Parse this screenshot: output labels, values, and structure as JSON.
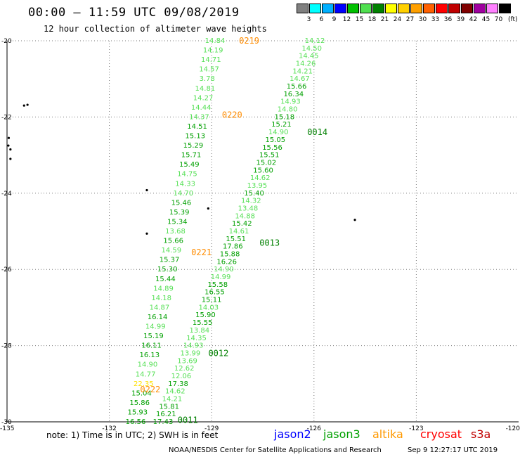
{
  "header": {
    "title": "00:00 — 11:59 UTC 09/08/2019",
    "subtitle": "12 hour collection of altimeter wave heights"
  },
  "legend": {
    "unit": "(ft)",
    "labels": [
      "3",
      "6",
      "9",
      "12",
      "15",
      "18",
      "21",
      "24",
      "27",
      "30",
      "33",
      "36",
      "39",
      "42",
      "45",
      "70"
    ],
    "colors": [
      "#808080",
      "#00ffff",
      "#00b0ff",
      "#0000ff",
      "#00c000",
      "#50e050",
      "#008000",
      "#ffff00",
      "#ffd000",
      "#ffa000",
      "#ff6000",
      "#ff0000",
      "#c00000",
      "#800000",
      "#a000a0",
      "#ff80ff",
      "#000000"
    ]
  },
  "axes": {
    "lat_labels": [
      "-20",
      "-22",
      "-24",
      "-26",
      "-28",
      "-30"
    ],
    "lon_labels": [
      "-135",
      "-132",
      "-129",
      "-126",
      "-123",
      "-120"
    ]
  },
  "colors": {
    "bright": "#57e057",
    "dark": "#00a000",
    "orange": "#ff8c00",
    "yellow": "#ffe000"
  },
  "tracks": [
    {
      "id": "A",
      "x1": 306,
      "y1": 58,
      "x2": 193,
      "y2": 600,
      "values": [
        "14.84",
        "14.19",
        "14.71",
        "14.57",
        "3.78",
        "14.81",
        "14.27",
        "14.44",
        "14.37",
        "14.51",
        "15.13",
        "15.29",
        "15.71",
        "15.49",
        "14.75",
        "14.33",
        "14.70",
        "15.46",
        "15.39",
        "15.34",
        "13.68",
        "15.66",
        "14.59",
        "15.37",
        "15.30",
        "15.44",
        "14.89",
        "14.18",
        "14.87",
        "16.14",
        "14.99",
        "15.19",
        "16.11",
        "16.13",
        "14.90",
        "14.77",
        "22.35",
        "15.04",
        "15.86",
        "15.93",
        "16.56"
      ],
      "tones": [
        "b",
        "b",
        "b",
        "b",
        "b",
        "b",
        "b",
        "b",
        "b",
        "d",
        "d",
        "d",
        "d",
        "d",
        "b",
        "b",
        "b",
        "d",
        "d",
        "d",
        "b",
        "d",
        "b",
        "d",
        "d",
        "d",
        "b",
        "b",
        "b",
        "d",
        "b",
        "d",
        "d",
        "d",
        "b",
        "b",
        "y",
        "d",
        "d",
        "d",
        "d"
      ]
    },
    {
      "id": "B",
      "x1": 448,
      "y1": 58,
      "x2": 232,
      "y2": 600,
      "values": [
        "14.12",
        "14.50",
        "14.45",
        "14.26",
        "14.21",
        "14.67",
        "15.66",
        "16.34",
        "14.93",
        "14.80",
        "15.18",
        "15.21",
        "14.90",
        "15.05",
        "15.56",
        "15.51",
        "15.02",
        "15.60",
        "14.62",
        "13.95",
        "15.40",
        "14.32",
        "13.48",
        "14.88",
        "15.42",
        "14.61",
        "15.51",
        "17.86",
        "15.88",
        "16.26",
        "14.90",
        "14.99",
        "15.58",
        "16.55",
        "15.11",
        "14.03",
        "15.90",
        "15.55",
        "13.84",
        "14.35",
        "14.93",
        "13.99",
        "13.69",
        "12.62",
        "12.06",
        "17.38",
        "14.62",
        "14.21",
        "15.81",
        "16.21",
        "17.43"
      ],
      "tones": [
        "b",
        "b",
        "b",
        "b",
        "b",
        "b",
        "d",
        "d",
        "b",
        "b",
        "d",
        "d",
        "b",
        "d",
        "d",
        "d",
        "d",
        "d",
        "b",
        "b",
        "d",
        "b",
        "b",
        "b",
        "d",
        "b",
        "d",
        "d",
        "d",
        "d",
        "b",
        "b",
        "d",
        "d",
        "d",
        "b",
        "d",
        "d",
        "b",
        "b",
        "b",
        "b",
        "b",
        "b",
        "b",
        "d",
        "b",
        "b",
        "d",
        "d",
        "d"
      ]
    }
  ],
  "orbit_labels": [
    {
      "text": "0219",
      "color": "orange",
      "lat": -20.0,
      "lon": -127.9
    },
    {
      "text": "0220",
      "color": "orange",
      "lat": -21.95,
      "lon": -128.4
    },
    {
      "text": "0014",
      "color": "darkgreen",
      "lat": -22.4,
      "lon": -125.9
    },
    {
      "text": "0013",
      "color": "darkgreen",
      "lat": -25.3,
      "lon": -127.3
    },
    {
      "text": "0221",
      "color": "orange",
      "lat": -25.55,
      "lon": -129.3
    },
    {
      "text": "0012",
      "color": "darkgreen",
      "lat": -28.2,
      "lon": -128.8
    },
    {
      "text": "0222",
      "color": "orange",
      "lat": -29.15,
      "lon": -130.8
    },
    {
      "text": "0011",
      "color": "darkgreen",
      "lat": -29.95,
      "lon": -129.7
    }
  ],
  "islands": [
    {
      "lat": -21.7,
      "lon": -134.5
    },
    {
      "lat": -21.68,
      "lon": -134.4
    },
    {
      "lat": -22.55,
      "lon": -134.95
    },
    {
      "lat": -22.75,
      "lon": -134.96
    },
    {
      "lat": -22.85,
      "lon": -134.9
    },
    {
      "lat": -23.1,
      "lon": -134.9
    },
    {
      "lat": -23.92,
      "lon": -130.9
    },
    {
      "lat": -24.4,
      "lon": -129.1
    },
    {
      "lat": -24.7,
      "lon": -124.8
    },
    {
      "lat": -25.06,
      "lon": -130.9
    }
  ],
  "satellites": [
    {
      "name": "jason2",
      "color": "#0000ff"
    },
    {
      "name": "jason3",
      "color": "#00a000"
    },
    {
      "name": "altika",
      "color": "#ff9900"
    },
    {
      "name": "cryosat",
      "color": "#ff0000"
    },
    {
      "name": "s3a",
      "color": "#c00000"
    }
  ],
  "footer": {
    "note": "note:  1) Time is in UTC;  2) SWH is in feet",
    "credit": "NOAA/NESDIS Center for Satellite Applications and Research",
    "timestamp": "Sep  9 12:27:17 UTC 2019"
  }
}
